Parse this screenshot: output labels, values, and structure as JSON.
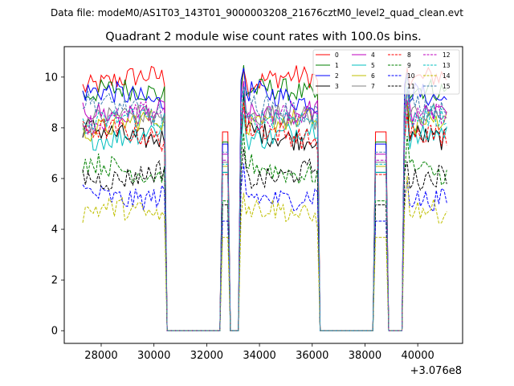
{
  "chart_data": {
    "type": "line",
    "suptitle": "Data file: modeM0/AS1T03_143T01_9000003208_21676cztM0_level2_quad_clean.evt",
    "title": "Quadrant 2 module wise count rates with 100.0s bins.",
    "xlabel": "",
    "ylabel": "",
    "x_offset_label": "+3.076e8",
    "xlim": [
      26600,
      41700
    ],
    "ylim": [
      -0.5,
      11.2
    ],
    "xticks": [
      28000,
      30000,
      32000,
      34000,
      36000,
      38000,
      40000
    ],
    "yticks": [
      0,
      2,
      4,
      6,
      8,
      10
    ],
    "legend_location": "upper right",
    "legend_columns": 4,
    "segments": [
      [
        27300,
        30400
      ],
      [
        32600,
        32800
      ],
      [
        33300,
        36200
      ],
      [
        38400,
        38800
      ],
      [
        39500,
        41100
      ]
    ],
    "peaks_x": [
      32700,
      33400,
      38500,
      39600
    ],
    "series": [
      {
        "name": "0",
        "color": "#ff0000",
        "dash": "solid",
        "level": 9.8
      },
      {
        "name": "1",
        "color": "#008000",
        "dash": "solid",
        "level": 9.3
      },
      {
        "name": "2",
        "color": "#0000ff",
        "dash": "solid",
        "level": 9.2
      },
      {
        "name": "3",
        "color": "#000000",
        "dash": "solid",
        "level": 7.8
      },
      {
        "name": "4",
        "color": "#bf00bf",
        "dash": "solid",
        "level": 8.7
      },
      {
        "name": "5",
        "color": "#00bfbf",
        "dash": "solid",
        "level": 7.8
      },
      {
        "name": "6",
        "color": "#bfbf00",
        "dash": "solid",
        "level": 8.1
      },
      {
        "name": "7",
        "color": "#808080",
        "dash": "solid",
        "level": 8.3
      },
      {
        "name": "8",
        "color": "#ff0000",
        "dash": "dashed",
        "level": 7.7
      },
      {
        "name": "9",
        "color": "#008000",
        "dash": "dashed",
        "level": 6.4
      },
      {
        "name": "10",
        "color": "#0000ff",
        "dash": "dashed",
        "level": 5.4
      },
      {
        "name": "11",
        "color": "#000000",
        "dash": "dashed",
        "level": 6.2
      },
      {
        "name": "12",
        "color": "#bf00bf",
        "dash": "dashed",
        "level": 8.4
      },
      {
        "name": "13",
        "color": "#00bfbf",
        "dash": "dashed",
        "level": 8.2
      },
      {
        "name": "14",
        "color": "#bfbf00",
        "dash": "dashed",
        "level": 4.6
      },
      {
        "name": "15",
        "color": "#4682b4",
        "dash": "dashed",
        "level": 8.8
      }
    ]
  }
}
